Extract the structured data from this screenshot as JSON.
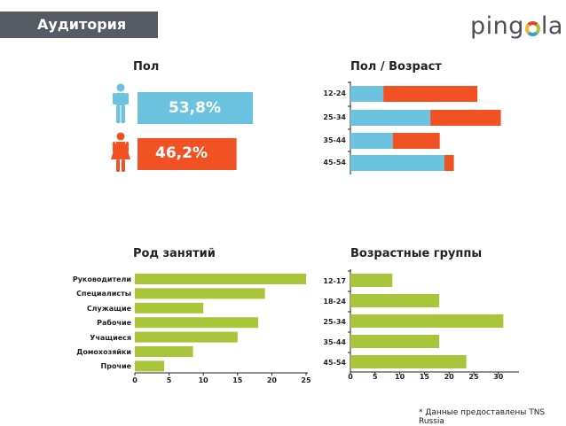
{
  "header": {
    "title": "Аудитория"
  },
  "logo": {
    "text_before": "ping",
    "text_after": "la"
  },
  "footnote": "* Данные предоставлены TNS Russia",
  "colors": {
    "male": "#6cc3df",
    "female": "#f05223",
    "green": "#a9c63a"
  },
  "chart_data": [
    {
      "type": "bar",
      "title": "Пол",
      "categories": [
        "male",
        "female"
      ],
      "icons": [
        "male-figure-icon",
        "female-figure-icon"
      ],
      "values": [
        53.8,
        46.2
      ],
      "value_labels": [
        "53,8%",
        "46,2%"
      ]
    },
    {
      "type": "bar",
      "orientation": "horizontal",
      "stacked": true,
      "title": "Пол / Возраст",
      "categories": [
        "12-24",
        "25-34",
        "35-44",
        "45-54"
      ],
      "series": [
        {
          "color": "#6cc3df",
          "values": [
            7,
            17,
            9,
            20
          ]
        },
        {
          "color": "#f05223",
          "values": [
            20,
            15,
            10,
            2
          ]
        }
      ]
    },
    {
      "type": "bar",
      "orientation": "horizontal",
      "title": "Род занятий",
      "categories": [
        "Руководители",
        "Специалисты",
        "Служащие",
        "Рабочие",
        "Учащиеся",
        "Домохозяйки",
        "Прочие"
      ],
      "values": [
        25,
        19,
        10,
        18,
        15,
        8.5,
        4.3
      ],
      "xticks": [
        "0",
        "5",
        "10",
        "15",
        "20",
        "25"
      ],
      "xlim": [
        0,
        25
      ]
    },
    {
      "type": "bar",
      "orientation": "horizontal",
      "title": "Возрастные группы",
      "categories": [
        "12-17",
        "18-24",
        "25-34",
        "35-44",
        "45-54"
      ],
      "values": [
        8.5,
        18,
        31,
        18,
        23.5
      ],
      "xticks": [
        "0",
        "5",
        "10",
        "15",
        "20",
        "25",
        "30"
      ],
      "xlim": [
        0,
        30
      ]
    }
  ]
}
